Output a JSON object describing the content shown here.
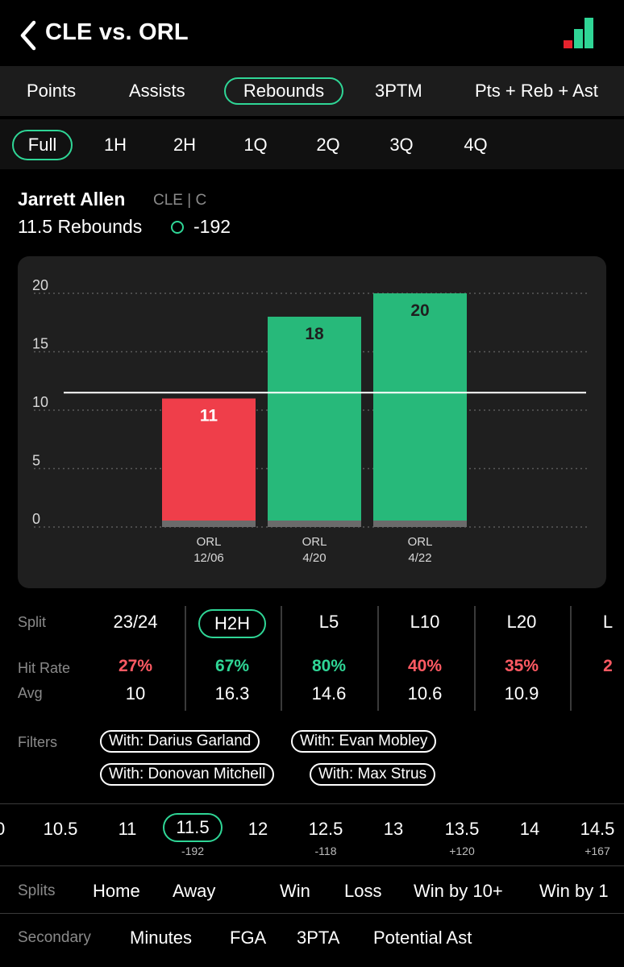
{
  "header": {
    "title": "CLE vs. ORL",
    "logo_colors": [
      "#e5232d",
      "#2fd696"
    ]
  },
  "stat_tabs": [
    "Points",
    "Assists",
    "Rebounds",
    "3PTM",
    "Pts + Reb + Ast"
  ],
  "stat_tab_selected": "Rebounds",
  "period_tabs": [
    "Full",
    "1H",
    "2H",
    "1Q",
    "2Q",
    "3Q",
    "4Q"
  ],
  "period_tab_selected": "Full",
  "player": {
    "name": "Jarrett Allen",
    "team_pos": "CLE | C",
    "line": "11.5 Rebounds",
    "odds": "-192"
  },
  "chart_data": {
    "type": "bar",
    "categories": [
      [
        "ORL",
        "12/06"
      ],
      [
        "ORL",
        "4/20"
      ],
      [
        "ORL",
        "4/22"
      ]
    ],
    "values": [
      11,
      18,
      20
    ],
    "value_labels": [
      "11",
      "18",
      "20"
    ],
    "bar_colors": [
      "#ef3e4a",
      "#27b97a",
      "#27b97a"
    ],
    "y_ticks": [
      0,
      5,
      10,
      15,
      20
    ],
    "ylim": [
      0,
      20
    ],
    "threshold": 11.5,
    "grid": true
  },
  "splits_table": {
    "label_split": "Split",
    "label_hit": "Hit Rate",
    "label_avg": "Avg",
    "columns": [
      {
        "head": "23/24",
        "hit": "27%",
        "hit_color": "red",
        "avg": "10"
      },
      {
        "head": "H2H",
        "hit": "67%",
        "hit_color": "green",
        "avg": "16.3",
        "selected": true
      },
      {
        "head": "L5",
        "hit": "80%",
        "hit_color": "green",
        "avg": "14.6"
      },
      {
        "head": "L10",
        "hit": "40%",
        "hit_color": "red",
        "avg": "10.6"
      },
      {
        "head": "L20",
        "hit": "35%",
        "hit_color": "red",
        "avg": "10.9"
      },
      {
        "head": "L",
        "hit": "2",
        "hit_color": "red",
        "avg": ""
      }
    ]
  },
  "filters": {
    "label": "Filters",
    "chips": [
      "With: Darius Garland",
      "With: Evan Mobley",
      "With: Donovan Mitchell",
      "With: Max Strus"
    ]
  },
  "lines": [
    {
      "value": "10.5",
      "odds": ""
    },
    {
      "value": "11",
      "odds": ""
    },
    {
      "value": "11.5",
      "odds": "-192",
      "selected": true
    },
    {
      "value": "12",
      "odds": ""
    },
    {
      "value": "12.5",
      "odds": "-118"
    },
    {
      "value": "13",
      "odds": ""
    },
    {
      "value": "13.5",
      "odds": "+120"
    },
    {
      "value": "14",
      "odds": ""
    },
    {
      "value": "14.5",
      "odds": "+167"
    }
  ],
  "splits_row": {
    "label": "Splits",
    "items": [
      "Home",
      "Away",
      "Win",
      "Loss",
      "Win by 10+",
      "Win by 1"
    ]
  },
  "secondary_row": {
    "label": "Secondary",
    "items": [
      "Minutes",
      "FGA",
      "3PTA",
      "Potential Ast"
    ]
  }
}
